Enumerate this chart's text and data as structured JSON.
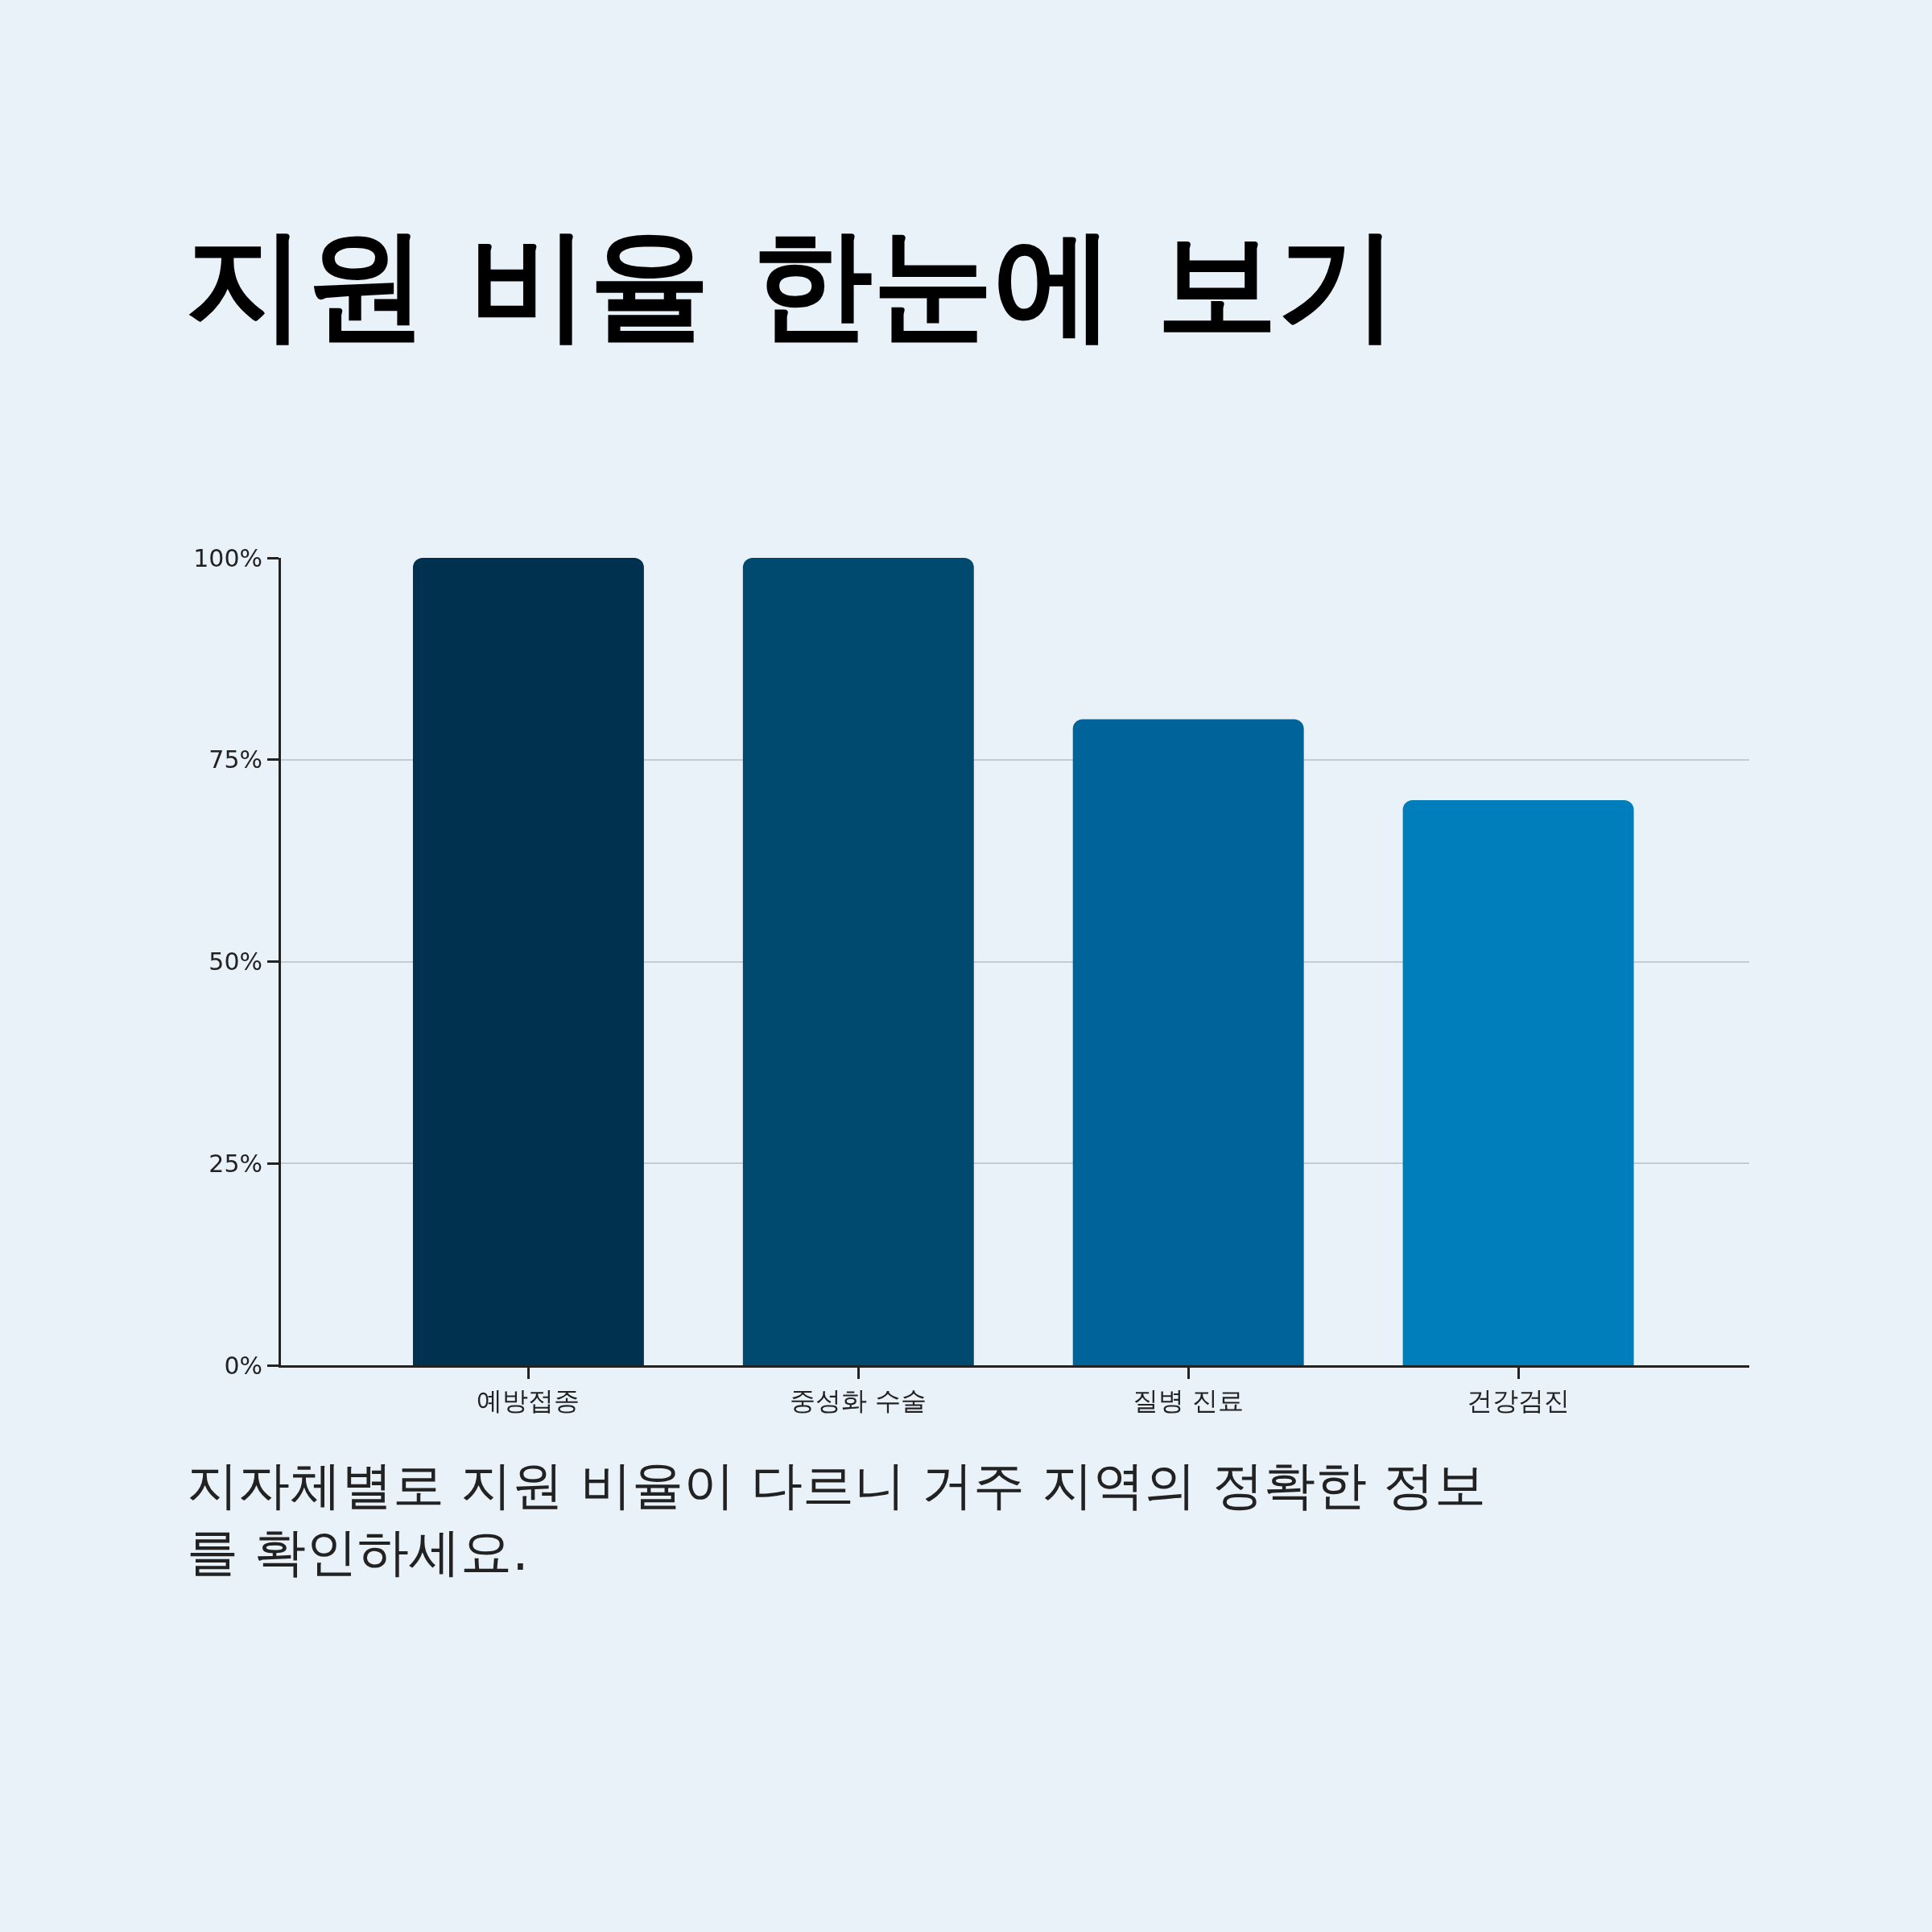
{
  "chart_data": {
    "type": "bar",
    "title": "지원 비율 한눈에 보기",
    "categories": [
      "예방접종",
      "중성화 수술",
      "질병 진료",
      "건강검진"
    ],
    "values": [
      100,
      100,
      80,
      70
    ],
    "colors": [
      "#00324f",
      "#004a70",
      "#00649a",
      "#007dbb"
    ],
    "ylim": [
      0,
      100
    ],
    "yticks": [
      {
        "value": 0,
        "label": "0%"
      },
      {
        "value": 25,
        "label": "25%"
      },
      {
        "value": 50,
        "label": "50%"
      },
      {
        "value": 75,
        "label": "75%"
      },
      {
        "value": 100,
        "label": "100%"
      }
    ],
    "grid": "y",
    "annotations": [
      "지자체별로 지원 비율이 다르니 거주 지역의 정확한 정보\n를 확인하세요."
    ]
  }
}
